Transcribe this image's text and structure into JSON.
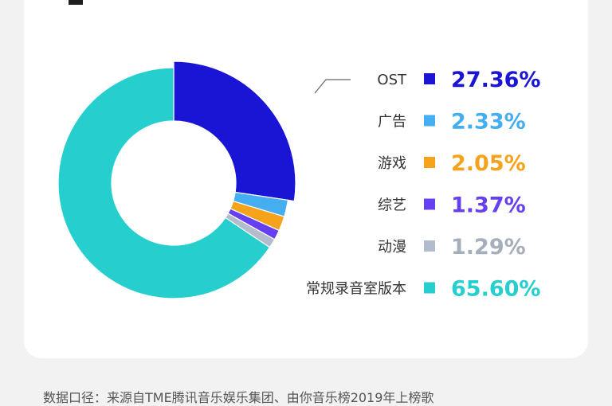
{
  "chart_data": {
    "type": "pie",
    "donut": true,
    "title": "",
    "start_angle_deg": 0,
    "slices": [
      {
        "label": "OST",
        "value": 27.36,
        "display": "27.36%",
        "color": "#1a14d4",
        "text_color": "#1a14d4"
      },
      {
        "label": "广告",
        "value": 2.33,
        "display": "2.33%",
        "color": "#45aef0",
        "text_color": "#45aef0"
      },
      {
        "label": "游戏",
        "value": 2.05,
        "display": "2.05%",
        "color": "#f7a21b",
        "text_color": "#f7a21b"
      },
      {
        "label": "综艺",
        "value": 1.37,
        "display": "1.37%",
        "color": "#6640f0",
        "text_color": "#6640f0"
      },
      {
        "label": "动漫",
        "value": 1.29,
        "display": "1.29%",
        "color": "#b3bccc",
        "text_color": "#a6aebb"
      },
      {
        "label": "常规录音室版本",
        "value": 65.6,
        "display": "65.60%",
        "color": "#26cfcd",
        "text_color": "#26cfcd"
      }
    ],
    "legend_position": "right"
  },
  "source_note": "数据口径：来源自TME腾讯音乐娱乐集团、由你音乐榜2019年上榜歌"
}
